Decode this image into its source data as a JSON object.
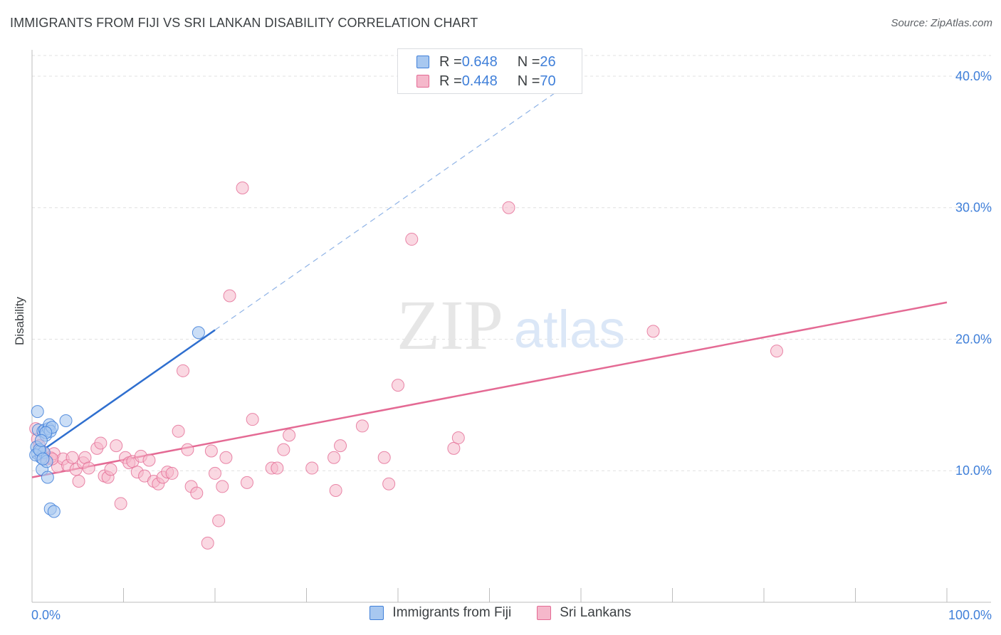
{
  "title": "IMMIGRANTS FROM FIJI VS SRI LANKAN DISABILITY CORRELATION CHART",
  "source": "Source: ZipAtlas.com",
  "watermark": {
    "zip": "ZIP",
    "atlas": "atlas"
  },
  "colors": {
    "fiji_fill": "#a8c8f0",
    "fiji_stroke": "#3f7fd9",
    "fiji_line": "#2f6fcf",
    "srilanka_fill": "#f5b8cb",
    "srilanka_stroke": "#e46a94",
    "srilanka_line": "#e46a94",
    "tick_label": "#3f7fd9",
    "grid": "#e0e0e0"
  },
  "legend": {
    "rows": [
      {
        "r_label": "R = ",
        "r_value": "0.648",
        "n_label": "N = ",
        "n_value": "26"
      },
      {
        "r_label": "R = ",
        "r_value": "0.448",
        "n_label": "N = ",
        "n_value": "70"
      }
    ]
  },
  "bottom_legend": [
    "Immigrants from Fiji",
    "Sri Lankans"
  ],
  "chart_data": {
    "type": "scatter",
    "title": "IMMIGRANTS FROM FIJI VS SRI LANKAN DISABILITY CORRELATION CHART",
    "xlabel": "",
    "ylabel": "Disability",
    "xlim": [
      0,
      100
    ],
    "ylim": [
      0,
      42
    ],
    "x_tick_labels": {
      "min": "0.0%",
      "max": "100.0%"
    },
    "y_ticks": [
      10,
      20,
      30,
      40
    ],
    "y_tick_labels": [
      "10.0%",
      "20.0%",
      "30.0%",
      "40.0%"
    ],
    "grid": true,
    "legend_position": "top-center",
    "series": [
      {
        "name": "Immigrants from Fiji",
        "r": 0.648,
        "n": 26,
        "trend": {
          "x0": 0,
          "y0": 11.0,
          "x1": 20,
          "y1": 20.7,
          "dashed_to_x": 60
        },
        "points": [
          [
            0.6,
            14.5
          ],
          [
            0.6,
            11.3
          ],
          [
            0.5,
            11.8
          ],
          [
            0.7,
            13.1
          ],
          [
            0.9,
            11.5
          ],
          [
            1.0,
            11.0
          ],
          [
            1.1,
            10.1
          ],
          [
            1.2,
            13.0
          ],
          [
            1.3,
            11.4
          ],
          [
            1.4,
            13.1
          ],
          [
            1.5,
            12.7
          ],
          [
            1.6,
            10.7
          ],
          [
            1.7,
            9.5
          ],
          [
            1.8,
            13.2
          ],
          [
            1.9,
            13.5
          ],
          [
            2.0,
            13.0
          ],
          [
            2.2,
            13.3
          ],
          [
            2.0,
            7.1
          ],
          [
            2.4,
            6.9
          ],
          [
            3.7,
            13.8
          ],
          [
            18.2,
            20.5
          ],
          [
            0.4,
            11.2
          ],
          [
            0.8,
            11.6
          ],
          [
            1.2,
            10.9
          ],
          [
            1.5,
            12.9
          ],
          [
            1.0,
            12.3
          ]
        ]
      },
      {
        "name": "Sri Lankans",
        "r": 0.448,
        "n": 70,
        "trend": {
          "x0": 0,
          "y0": 9.5,
          "x1": 100,
          "y1": 22.8
        },
        "points": [
          [
            0.4,
            13.2
          ],
          [
            0.6,
            12.4
          ],
          [
            0.8,
            11.9
          ],
          [
            1.0,
            11.2
          ],
          [
            1.3,
            11.3
          ],
          [
            1.6,
            10.9
          ],
          [
            2.0,
            11.0
          ],
          [
            2.4,
            11.3
          ],
          [
            2.8,
            10.3
          ],
          [
            3.4,
            10.9
          ],
          [
            3.9,
            10.4
          ],
          [
            4.4,
            11.0
          ],
          [
            4.8,
            10.1
          ],
          [
            5.1,
            9.2
          ],
          [
            5.6,
            10.6
          ],
          [
            5.8,
            11.0
          ],
          [
            6.2,
            10.2
          ],
          [
            7.1,
            11.7
          ],
          [
            7.5,
            12.1
          ],
          [
            7.9,
            9.6
          ],
          [
            8.3,
            9.5
          ],
          [
            8.6,
            10.1
          ],
          [
            9.2,
            11.9
          ],
          [
            9.7,
            7.5
          ],
          [
            10.2,
            11.0
          ],
          [
            10.6,
            10.6
          ],
          [
            11.0,
            10.7
          ],
          [
            11.5,
            9.9
          ],
          [
            11.9,
            11.1
          ],
          [
            12.3,
            9.6
          ],
          [
            12.8,
            10.8
          ],
          [
            13.3,
            9.2
          ],
          [
            13.8,
            9.0
          ],
          [
            14.3,
            9.5
          ],
          [
            14.8,
            9.9
          ],
          [
            15.3,
            9.8
          ],
          [
            16.0,
            13.0
          ],
          [
            16.5,
            17.6
          ],
          [
            17.0,
            11.6
          ],
          [
            17.4,
            8.8
          ],
          [
            18.0,
            8.3
          ],
          [
            19.2,
            4.5
          ],
          [
            19.6,
            11.5
          ],
          [
            20.0,
            9.8
          ],
          [
            20.4,
            6.2
          ],
          [
            20.8,
            8.8
          ],
          [
            21.2,
            11.0
          ],
          [
            21.6,
            23.3
          ],
          [
            23.0,
            31.5
          ],
          [
            23.5,
            9.1
          ],
          [
            24.1,
            13.9
          ],
          [
            26.2,
            10.2
          ],
          [
            26.8,
            10.2
          ],
          [
            27.5,
            11.6
          ],
          [
            28.1,
            12.7
          ],
          [
            30.6,
            10.2
          ],
          [
            33.0,
            11.0
          ],
          [
            33.2,
            8.5
          ],
          [
            33.7,
            11.9
          ],
          [
            36.1,
            13.4
          ],
          [
            38.5,
            11.0
          ],
          [
            39.0,
            9.0
          ],
          [
            40.0,
            16.5
          ],
          [
            41.5,
            27.6
          ],
          [
            46.1,
            11.7
          ],
          [
            46.6,
            12.5
          ],
          [
            52.1,
            30.0
          ],
          [
            67.9,
            20.6
          ],
          [
            81.4,
            19.1
          ],
          [
            2.2,
            10.9
          ]
        ]
      }
    ]
  }
}
